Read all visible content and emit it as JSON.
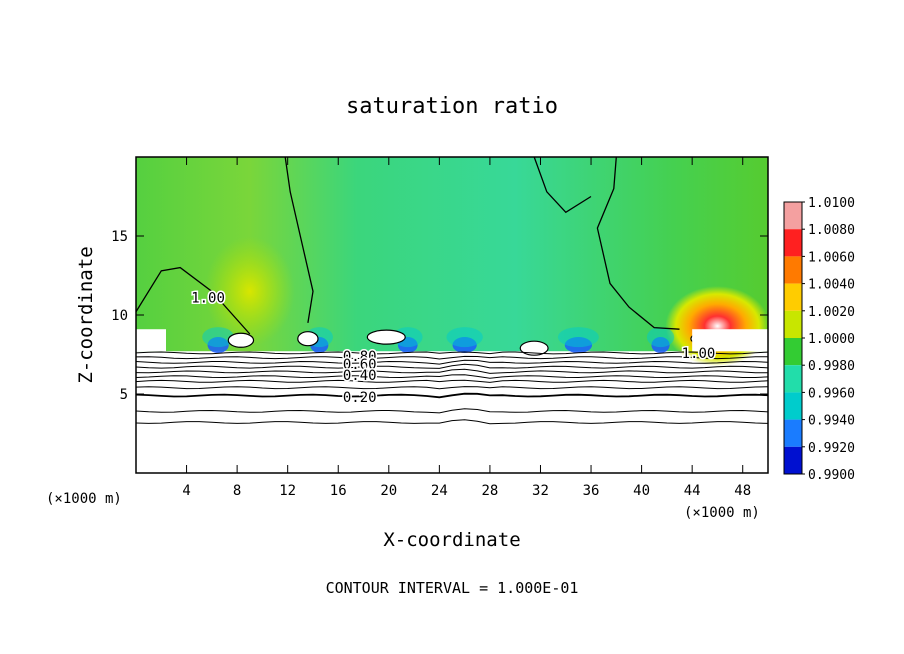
{
  "chart_data": {
    "type": "heatmap",
    "title": "saturation ratio",
    "xlabel": "X-coordinate",
    "ylabel": "Z-coordinate",
    "x_units_left": "(×1000 m)",
    "x_units_right": "(×1000 m)",
    "xlim": [
      0,
      50
    ],
    "ylim": [
      0,
      20
    ],
    "x_ticks": [
      4,
      8,
      12,
      16,
      20,
      24,
      28,
      32,
      36,
      40,
      44,
      48
    ],
    "y_ticks": [
      5,
      10,
      15
    ],
    "footer": "CONTOUR INTERVAL = 1.000E-01",
    "colorbar": {
      "labels": [
        "1.0100",
        "1.0080",
        "1.0060",
        "1.0040",
        "1.0020",
        "1.0000",
        "0.9980",
        "0.9960",
        "0.9940",
        "0.9920",
        "0.9900"
      ],
      "colors": [
        "#f4a0a0",
        "#ff2020",
        "#ff7a00",
        "#ffcc00",
        "#c8e600",
        "#33cc33",
        "#22ddaa",
        "#00cccc",
        "#1a7cff",
        "#0010d0",
        "#5a0090"
      ]
    },
    "contour_labels": [
      {
        "text": "1.00",
        "x": 5.7,
        "z": 11.1
      },
      {
        "text": "1.00",
        "x": 44.5,
        "z": 7.6
      },
      {
        "text": "0.80",
        "x": 17.7,
        "z": 7.4
      },
      {
        "text": "0.60",
        "x": 17.7,
        "z": 6.9
      },
      {
        "text": "0.40",
        "x": 17.7,
        "z": 6.2
      },
      {
        "text": "0.20",
        "x": 17.7,
        "z": 4.8
      }
    ],
    "contour_levels_below": [
      7.6,
      7.3,
      7.0,
      6.7,
      6.4,
      6.1,
      5.8,
      5.4,
      4.9,
      3.9,
      3.2
    ],
    "saturated_boundary_z": 7.7
  }
}
